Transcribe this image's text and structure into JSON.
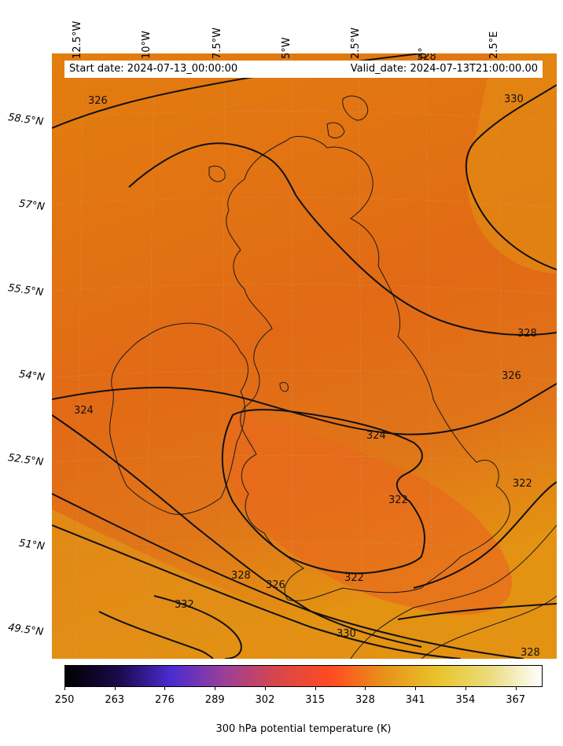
{
  "header": {
    "start_date": "Start date: 2024-07-13_00:00:00",
    "valid_date": "Valid_date: 2024-07-13T21:00:00.00"
  },
  "longitude_labels": [
    "12.5°W",
    "10°W",
    "7.5°W",
    "5°W",
    "2.5°W",
    "0°",
    "2.5°E"
  ],
  "latitude_labels": [
    "58.5°N",
    "57°N",
    "55.5°N",
    "54°N",
    "52.5°N",
    "51°N",
    "49.5°N"
  ],
  "contour_labels": [
    "326",
    "328",
    "330",
    "328",
    "326",
    "324",
    "324",
    "322",
    "322",
    "322",
    "328",
    "326",
    "332",
    "330",
    "328"
  ],
  "colorbar": {
    "ticks": [
      "250",
      "263",
      "276",
      "289",
      "302",
      "315",
      "328",
      "341",
      "354",
      "367"
    ],
    "label": "300 hPa potential temperature (K)",
    "colors": [
      "#000000",
      "#1a0a4a",
      "#4b2bd0",
      "#9a3f9a",
      "#d8464a",
      "#ff4a24",
      "#e8901a",
      "#e9c22a",
      "#eadb7a",
      "#ffffff"
    ]
  },
  "colors": {
    "field_main": "#e07a10",
    "field_warm": "#e86418",
    "field_south": "#e38d14",
    "contour": "#111111",
    "coast": "#1a1a1a"
  }
}
